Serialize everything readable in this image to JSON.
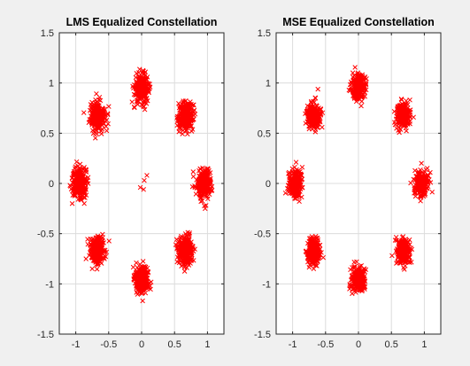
{
  "chart_data": [
    {
      "type": "scatter",
      "title": "LMS Equalized Constellation",
      "xlabel": "",
      "ylabel": "",
      "xlim": [
        -1.25,
        1.25
      ],
      "ylim": [
        -1.5,
        1.5
      ],
      "xticks": [
        -1,
        -0.5,
        0,
        0.5,
        1
      ],
      "xtick_labels": [
        "-1",
        "-0.5",
        "0",
        "0.5",
        "1"
      ],
      "yticks": [
        -1.5,
        -1,
        -0.5,
        0,
        0.5,
        1,
        1.5
      ],
      "ytick_labels": [
        "-1.5",
        "-1",
        "-0.5",
        "0",
        "0.5",
        "1",
        "1.5"
      ],
      "grid": true,
      "marker": "x",
      "color": "#ff0000",
      "clusters": [
        {
          "x": 0,
          "y": 0.95,
          "spread_x": 0.09,
          "spread_y": 0.11
        },
        {
          "x": 0.67,
          "y": 0.67,
          "spread_x": 0.09,
          "spread_y": 0.11
        },
        {
          "x": 0.95,
          "y": 0,
          "spread_x": 0.09,
          "spread_y": 0.12
        },
        {
          "x": 0.67,
          "y": -0.67,
          "spread_x": 0.09,
          "spread_y": 0.11
        },
        {
          "x": 0,
          "y": -0.95,
          "spread_x": 0.09,
          "spread_y": 0.11
        },
        {
          "x": -0.67,
          "y": -0.67,
          "spread_x": 0.09,
          "spread_y": 0.11
        },
        {
          "x": -0.95,
          "y": 0,
          "spread_x": 0.09,
          "spread_y": 0.12
        },
        {
          "x": -0.67,
          "y": 0.67,
          "spread_x": 0.09,
          "spread_y": 0.11
        }
      ],
      "points_per_cluster": 260,
      "outliers": [
        {
          "x": 0.08,
          "y": 0.08
        },
        {
          "x": 0.04,
          "y": 0.03
        },
        {
          "x": -0.02,
          "y": -0.04
        },
        {
          "x": 0.03,
          "y": -0.06
        }
      ]
    },
    {
      "type": "scatter",
      "title": "MSE Equalized Constellation",
      "xlabel": "",
      "ylabel": "",
      "xlim": [
        -1.25,
        1.25
      ],
      "ylim": [
        -1.5,
        1.5
      ],
      "xticks": [
        -1,
        -0.5,
        0,
        0.5,
        1
      ],
      "xtick_labels": [
        "-1",
        "-0.5",
        "0",
        "0.5",
        "1"
      ],
      "yticks": [
        -1.5,
        -1,
        -0.5,
        0,
        0.5,
        1,
        1.5
      ],
      "ytick_labels": [
        "-1.5",
        "-1",
        "-0.5",
        "0",
        "0.5",
        "1",
        "1.5"
      ],
      "grid": true,
      "marker": "x",
      "color": "#ff0000",
      "clusters": [
        {
          "x": 0,
          "y": 0.96,
          "spread_x": 0.08,
          "spread_y": 0.1
        },
        {
          "x": 0.68,
          "y": 0.68,
          "spread_x": 0.08,
          "spread_y": 0.1
        },
        {
          "x": 0.96,
          "y": 0,
          "spread_x": 0.08,
          "spread_y": 0.1
        },
        {
          "x": 0.68,
          "y": -0.68,
          "spread_x": 0.08,
          "spread_y": 0.1
        },
        {
          "x": 0,
          "y": -0.96,
          "spread_x": 0.08,
          "spread_y": 0.1
        },
        {
          "x": -0.68,
          "y": -0.68,
          "spread_x": 0.08,
          "spread_y": 0.1
        },
        {
          "x": -0.96,
          "y": 0,
          "spread_x": 0.08,
          "spread_y": 0.1
        },
        {
          "x": -0.68,
          "y": 0.68,
          "spread_x": 0.08,
          "spread_y": 0.1
        }
      ],
      "points_per_cluster": 240,
      "outliers": []
    }
  ]
}
